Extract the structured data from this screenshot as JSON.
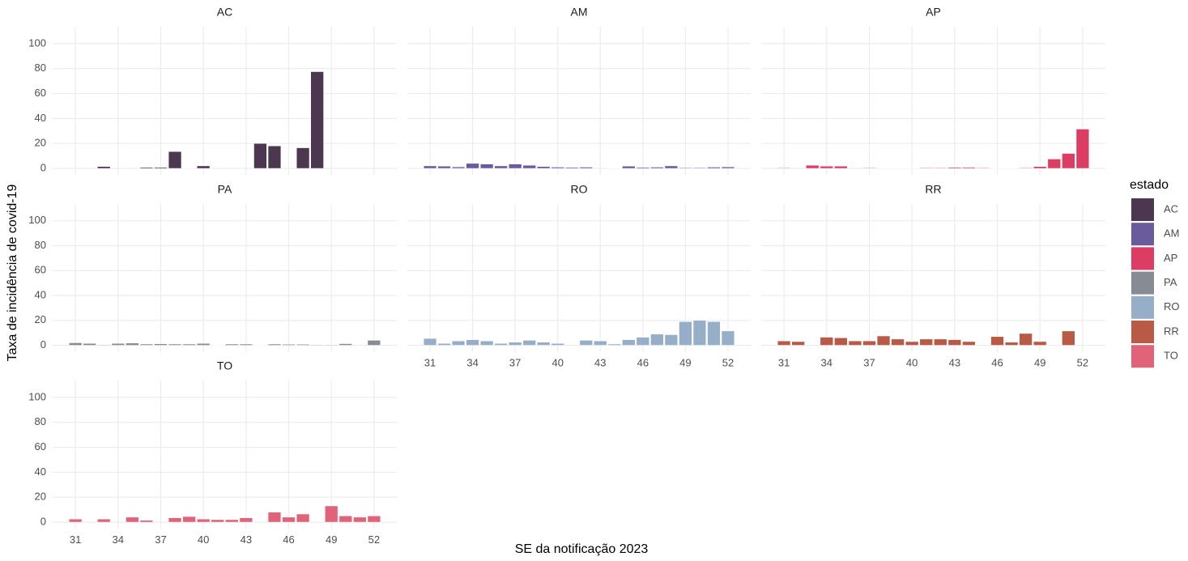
{
  "y_label": "Taxa de incidência de covid-19",
  "x_label": "SE da notificação 2023",
  "legend_title": "estado",
  "chart_data": [
    {
      "type": "bar",
      "title": "AC",
      "color": "#4b3850",
      "x_tick_labels": false,
      "y_tick_labels": true,
      "x": [
        31,
        32,
        33,
        34,
        35,
        36,
        37,
        38,
        39,
        40,
        41,
        42,
        43,
        44,
        45,
        46,
        47,
        48,
        49,
        50,
        51,
        52
      ],
      "values": [
        null,
        null,
        1.5,
        null,
        null,
        0.8,
        0.8,
        13.5,
        0.3,
        2,
        null,
        null,
        null,
        20,
        18,
        null,
        16.5,
        77.5,
        null,
        null,
        null,
        null
      ],
      "xlim": [
        29.4,
        53.6
      ],
      "xticks": [
        31,
        34,
        37,
        40,
        43,
        46,
        49,
        52
      ],
      "ylim": [
        -5.5,
        113.5
      ],
      "yticks": [
        0,
        20,
        40,
        60,
        80,
        100
      ],
      "grid": true
    },
    {
      "type": "bar",
      "title": "AM",
      "color": "#6a5b9c",
      "x_tick_labels": false,
      "y_tick_labels": false,
      "x": [
        31,
        32,
        33,
        34,
        35,
        36,
        37,
        38,
        39,
        40,
        41,
        42,
        43,
        44,
        45,
        46,
        47,
        48,
        49,
        50,
        51,
        52
      ],
      "values": [
        2,
        1.8,
        1.2,
        4,
        3.5,
        2,
        3.5,
        2.5,
        1.5,
        1,
        0.8,
        1,
        null,
        0.3,
        1.8,
        0.8,
        1,
        2,
        0.6,
        0.6,
        1,
        1.2
      ],
      "xlim": [
        29.4,
        53.6
      ],
      "xticks": [
        31,
        34,
        37,
        40,
        43,
        46,
        49,
        52
      ],
      "ylim": [
        -5.5,
        113.5
      ],
      "yticks": [
        0,
        20,
        40,
        60,
        80,
        100
      ],
      "grid": true
    },
    {
      "type": "bar",
      "title": "AP",
      "color": "#dc3d63",
      "x_tick_labels": false,
      "y_tick_labels": false,
      "x": [
        31,
        32,
        33,
        34,
        35,
        36,
        37,
        38,
        39,
        40,
        41,
        42,
        43,
        44,
        45,
        46,
        47,
        48,
        49,
        50,
        51,
        52
      ],
      "values": [
        0.5,
        null,
        2.5,
        1.8,
        1.8,
        null,
        0.5,
        0.3,
        0.3,
        0.3,
        0.5,
        0.5,
        0.8,
        0.8,
        0.5,
        0.3,
        0.3,
        0.5,
        1.5,
        7.5,
        12,
        31.5
      ],
      "xlim": [
        29.4,
        53.6
      ],
      "xticks": [
        31,
        34,
        37,
        40,
        43,
        46,
        49,
        52
      ],
      "ylim": [
        -5.5,
        113.5
      ],
      "yticks": [
        0,
        20,
        40,
        60,
        80,
        100
      ],
      "grid": true
    },
    {
      "type": "bar",
      "title": "PA",
      "color": "#878c94",
      "x_tick_labels": false,
      "y_tick_labels": true,
      "x": [
        31,
        32,
        33,
        34,
        35,
        36,
        37,
        38,
        39,
        40,
        41,
        42,
        43,
        44,
        45,
        46,
        47,
        48,
        49,
        50,
        51,
        52
      ],
      "values": [
        2,
        1.5,
        0.5,
        1.5,
        1.8,
        1,
        1.2,
        1,
        1,
        1.5,
        0.3,
        1,
        1,
        0.3,
        1,
        0.8,
        0.8,
        0.5,
        0.5,
        1.3,
        null,
        4
      ],
      "xlim": [
        29.4,
        53.6
      ],
      "xticks": [
        31,
        34,
        37,
        40,
        43,
        46,
        49,
        52
      ],
      "ylim": [
        -5.5,
        113.5
      ],
      "yticks": [
        0,
        20,
        40,
        60,
        80,
        100
      ],
      "grid": true
    },
    {
      "type": "bar",
      "title": "RO",
      "color": "#97aec8",
      "x_tick_labels": true,
      "y_tick_labels": false,
      "x": [
        31,
        32,
        33,
        34,
        35,
        36,
        37,
        38,
        39,
        40,
        41,
        42,
        43,
        44,
        45,
        46,
        47,
        48,
        49,
        50,
        51,
        52
      ],
      "values": [
        5.5,
        1.5,
        3.5,
        4.5,
        3.5,
        1.5,
        2.5,
        4,
        2.5,
        1.5,
        null,
        4,
        3.5,
        1,
        4.5,
        6.5,
        9,
        8.5,
        19,
        20,
        19,
        11.5
      ],
      "xlim": [
        29.4,
        53.6
      ],
      "xticks": [
        31,
        34,
        37,
        40,
        43,
        46,
        49,
        52
      ],
      "ylim": [
        -5.5,
        113.5
      ],
      "yticks": [
        0,
        20,
        40,
        60,
        80,
        100
      ],
      "grid": true
    },
    {
      "type": "bar",
      "title": "RR",
      "color": "#b85a45",
      "x_tick_labels": true,
      "y_tick_labels": false,
      "x": [
        31,
        32,
        33,
        34,
        35,
        36,
        37,
        38,
        39,
        40,
        41,
        42,
        43,
        44,
        45,
        46,
        47,
        48,
        49,
        50,
        51,
        52
      ],
      "values": [
        3.5,
        3,
        null,
        6.5,
        6,
        3.5,
        3.5,
        7.5,
        5,
        3,
        5,
        5,
        4.5,
        3,
        null,
        7,
        2.5,
        9.5,
        3,
        null,
        11.5,
        null
      ],
      "xlim": [
        29.4,
        53.6
      ],
      "xticks": [
        31,
        34,
        37,
        40,
        43,
        46,
        49,
        52
      ],
      "ylim": [
        -5.5,
        113.5
      ],
      "yticks": [
        0,
        20,
        40,
        60,
        80,
        100
      ],
      "grid": true
    },
    {
      "type": "bar",
      "title": "TO",
      "color": "#e0637a",
      "x_tick_labels": true,
      "y_tick_labels": true,
      "x": [
        31,
        32,
        33,
        34,
        35,
        36,
        37,
        38,
        39,
        40,
        41,
        42,
        43,
        44,
        45,
        46,
        47,
        48,
        49,
        50,
        51,
        52
      ],
      "values": [
        2.5,
        null,
        2.5,
        null,
        4,
        1.5,
        null,
        3.5,
        4.5,
        2.5,
        2,
        2,
        3.5,
        null,
        8,
        4,
        6.5,
        null,
        13,
        5,
        4,
        5
      ],
      "xlim": [
        29.4,
        53.6
      ],
      "xticks": [
        31,
        34,
        37,
        40,
        43,
        46,
        49,
        52
      ],
      "ylim": [
        -5.5,
        113.5
      ],
      "yticks": [
        0,
        20,
        40,
        60,
        80,
        100
      ],
      "grid": true
    }
  ]
}
